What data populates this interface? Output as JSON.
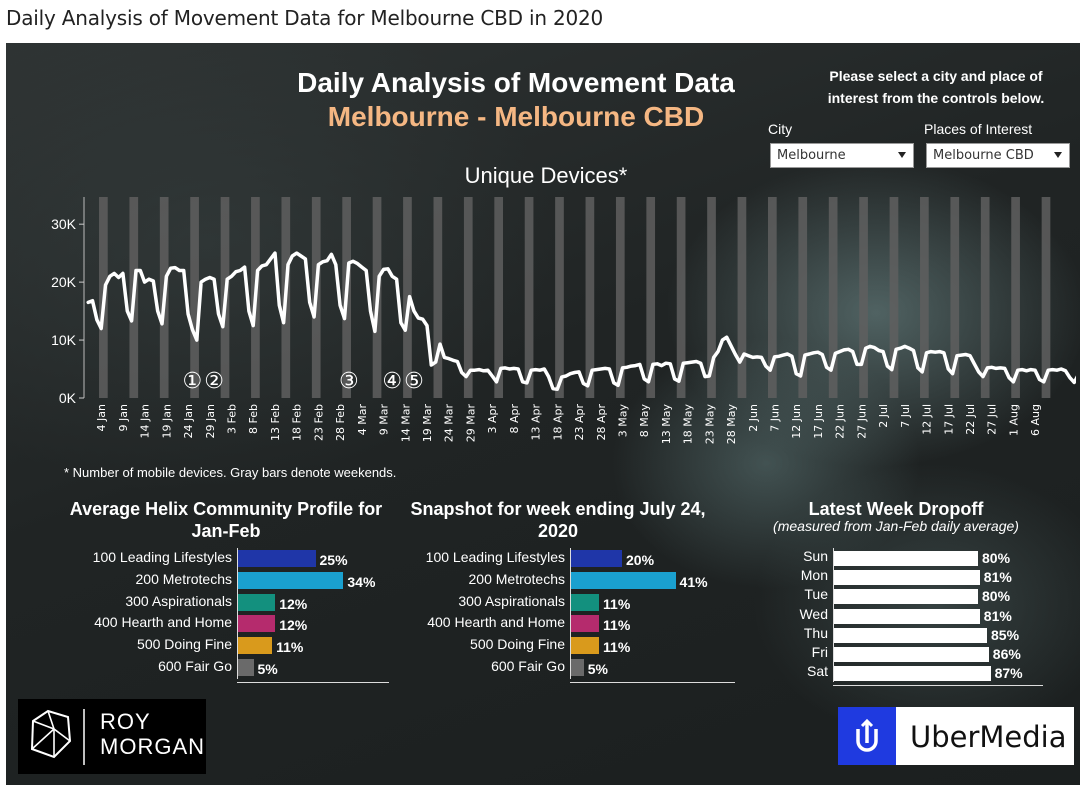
{
  "page_heading": "Daily Analysis of Movement Data for Melbourne CBD in 2020",
  "dashboard": {
    "title": "Daily Analysis of Movement Data",
    "subtitle": "Melbourne - Melbourne CBD",
    "select_note_line1": "Please select a city and place of",
    "select_note_line2": "interest from the controls below.",
    "city_label": "City",
    "city_value": "Melbourne",
    "places_label": "Places of Interest",
    "places_value": "Melbourne CBD",
    "chart_title": "Unique Devices*",
    "footnote": "* Number of mobile devices. Gray bars denote weekends."
  },
  "colors": {
    "accent_orange": "#f5b783",
    "line": "#ffffff",
    "weekend_bar": "#5f5f5f",
    "helix": [
      "#1f36a8",
      "#1aa0cf",
      "#13907e",
      "#b52b6d",
      "#d99a1c",
      "#6a6a6a"
    ]
  },
  "chart_data": [
    {
      "type": "line",
      "title": "Unique Devices*",
      "y_ticks": [
        "0K",
        "10K",
        "20K",
        "30K"
      ],
      "ylim": [
        0,
        34000
      ],
      "x_ticks": [
        "4 Jan",
        "9 Jan",
        "14 Jan",
        "19 Jan",
        "24 Jan",
        "29 Jan",
        "3 Feb",
        "8 Feb",
        "13 Feb",
        "18 Feb",
        "23 Feb",
        "28 Feb",
        "4 Mar",
        "9 Mar",
        "14 Mar",
        "19 Mar",
        "24 Mar",
        "29 Mar",
        "3 Apr",
        "8 Apr",
        "13 Apr",
        "18 Apr",
        "23 Apr",
        "28 Apr",
        "3 May",
        "8 May",
        "13 May",
        "18 May",
        "23 May",
        "28 May",
        "2 Jun",
        "7 Jun",
        "12 Jun",
        "17 Jun",
        "22 Jun",
        "27 Jun",
        "2 Jul",
        "7 Jul",
        "12 Jul",
        "17 Jul",
        "22 Jul",
        "27 Jul",
        "1 Aug",
        "6 Aug"
      ],
      "date_range": [
        "2020-01-01",
        "2020-08-08"
      ],
      "weekend_bars": "Saturday-Sunday of each week",
      "series": [
        {
          "values": [
            16500,
            16800,
            13500,
            12000,
            19500,
            21000,
            21500,
            20800,
            21500,
            15000,
            13300,
            22000,
            22000,
            20000,
            20500,
            20200,
            15000,
            12800,
            21000,
            22400,
            22500,
            22000,
            22000,
            14500,
            11800,
            10000,
            20000,
            20500,
            20800,
            20500,
            14500,
            12300,
            20500,
            21000,
            21800,
            22000,
            22600,
            15000,
            12500,
            22000,
            22800,
            23000,
            24000,
            25000,
            16000,
            13000,
            23000,
            24500,
            25000,
            24500,
            24000,
            16500,
            14000,
            23000,
            23500,
            23700,
            24800,
            23000,
            16000,
            13700,
            23300,
            23600,
            23200,
            22600,
            22000,
            15000,
            11500,
            21000,
            22200,
            22300,
            21000,
            20500,
            13000,
            11700,
            17500,
            15000,
            13800,
            13600,
            12500,
            5700,
            6200,
            9300,
            7000,
            6800,
            6500,
            6300,
            4400,
            3700,
            4800,
            4800,
            4900,
            4700,
            4800,
            3800,
            2800,
            5100,
            5200,
            5000,
            5100,
            5000,
            2800,
            2600,
            4800,
            4900,
            4800,
            5000,
            3700,
            1600,
            1500,
            3600,
            3800,
            4200,
            4400,
            4500,
            2500,
            2100,
            4800,
            4900,
            5000,
            5100,
            5000,
            2600,
            2200,
            5200,
            5300,
            5500,
            5600,
            5800,
            3300,
            2800,
            5800,
            5900,
            5600,
            6000,
            5900,
            3300,
            2900,
            6000,
            6100,
            6200,
            6300,
            6000,
            3700,
            3800,
            7000,
            8000,
            10000,
            10500,
            9000,
            7500,
            6200,
            7600,
            7300,
            7000,
            7100,
            7000,
            5500,
            4800,
            7100,
            7200,
            7400,
            7600,
            7200,
            4200,
            3800,
            7400,
            7600,
            7800,
            7900,
            7500,
            5300,
            4800,
            7700,
            8000,
            8300,
            8400,
            8000,
            5800,
            5800,
            8600,
            8900,
            8700,
            8200,
            8000,
            5500,
            4900,
            8400,
            8600,
            8900,
            8600,
            8200,
            5200,
            4500,
            7800,
            8000,
            7900,
            8000,
            7800,
            5000,
            4200,
            7300,
            7400,
            7500,
            7300,
            5900,
            4500,
            3700,
            5200,
            5300,
            5100,
            5200,
            5100,
            3500,
            2800,
            4800,
            4900,
            4700,
            4900,
            4800,
            3200,
            2800,
            4800,
            4900,
            4800,
            5000,
            4700,
            3500,
            2700,
            4100,
            4200,
            4100,
            3900,
            2400,
            1900,
            3000,
            2800,
            3300,
            2200,
            1000
          ],
          "annotations": [
            {
              "label": "①",
              "x": "2020-01-25"
            },
            {
              "label": "②",
              "x": "2020-01-30"
            },
            {
              "label": "③",
              "x": "2020-03-01"
            },
            {
              "label": "④",
              "x": "2020-03-11"
            },
            {
              "label": "⑤",
              "x": "2020-03-16"
            }
          ]
        }
      ]
    },
    {
      "type": "bar",
      "orientation": "horizontal",
      "title": "Average Helix Community Profile for Jan-Feb",
      "categories": [
        "100 Leading Lifestyles",
        "200 Metrotechs",
        "300 Aspirationals",
        "400 Hearth and Home",
        "500 Doing Fine",
        "600 Fair Go"
      ],
      "values": [
        25,
        34,
        12,
        12,
        11,
        5
      ],
      "value_labels": [
        "25%",
        "34%",
        "12%",
        "12%",
        "11%",
        "5%"
      ]
    },
    {
      "type": "bar",
      "orientation": "horizontal",
      "title": "Snapshot for week ending July 24, 2020",
      "categories": [
        "100 Leading Lifestyles",
        "200 Metrotechs",
        "300 Aspirationals",
        "400 Hearth and Home",
        "500 Doing Fine",
        "600 Fair Go"
      ],
      "values": [
        20,
        41,
        11,
        11,
        11,
        5
      ],
      "value_labels": [
        "20%",
        "41%",
        "11%",
        "11%",
        "11%",
        "5%"
      ]
    },
    {
      "type": "bar",
      "orientation": "horizontal",
      "title": "Latest Week Dropoff",
      "subtitle": "(measured from Jan-Feb daily average)",
      "categories": [
        "Sun",
        "Mon",
        "Tue",
        "Wed",
        "Thu",
        "Fri",
        "Sat"
      ],
      "values": [
        80,
        81,
        80,
        81,
        85,
        86,
        87
      ],
      "value_labels": [
        "80%",
        "81%",
        "80%",
        "81%",
        "85%",
        "86%",
        "87%"
      ]
    }
  ],
  "logos": {
    "roy_line1": "ROY",
    "roy_line2": "MORGAN",
    "uber": "UberMedia"
  }
}
